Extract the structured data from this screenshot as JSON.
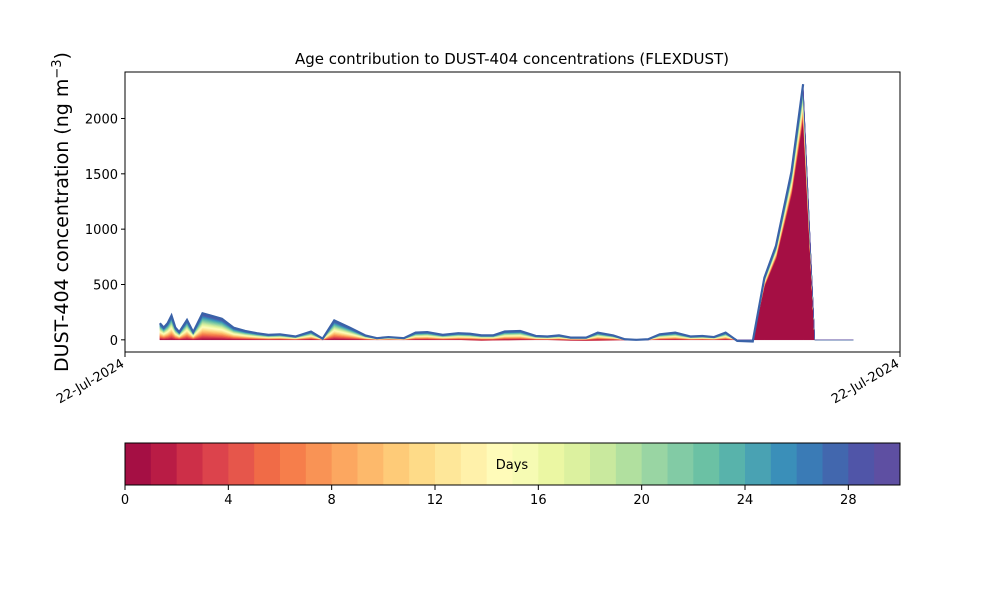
{
  "chart_data": {
    "type": "area",
    "title": "Age contribution to DUST-404 concentrations (FLEXDUST)",
    "ylabel": "DUST-404 concentration (ng m",
    "ylabel_sup": "−3",
    "ylabel_close": ")",
    "ylim": [
      -110,
      2420
    ],
    "yticks": [
      0,
      500,
      1000,
      1500,
      2000
    ],
    "xlim": [
      0,
      1
    ],
    "xticks": [
      {
        "pos": 0,
        "label": "22-Jul-2024"
      },
      {
        "pos": 1,
        "label": "22-Jul-2024"
      }
    ],
    "x": [
      0.045,
      0.05,
      0.055,
      0.06,
      0.065,
      0.07,
      0.08,
      0.088,
      0.1,
      0.11,
      0.125,
      0.14,
      0.155,
      0.17,
      0.185,
      0.2,
      0.22,
      0.24,
      0.255,
      0.27,
      0.29,
      0.31,
      0.325,
      0.34,
      0.36,
      0.375,
      0.39,
      0.41,
      0.43,
      0.445,
      0.46,
      0.475,
      0.49,
      0.51,
      0.53,
      0.545,
      0.56,
      0.575,
      0.595,
      0.61,
      0.63,
      0.645,
      0.66,
      0.675,
      0.69,
      0.71,
      0.73,
      0.745,
      0.76,
      0.775,
      0.79,
      0.81,
      0.825,
      0.84,
      0.86,
      0.875,
      0.89,
      0.9,
      0.91,
      0.92,
      0.93,
      0.94
    ],
    "total": [
      150,
      110,
      150,
      220,
      110,
      70,
      180,
      70,
      240,
      220,
      190,
      110,
      80,
      60,
      45,
      50,
      30,
      75,
      10,
      175,
      110,
      40,
      15,
      25,
      15,
      65,
      70,
      45,
      60,
      55,
      40,
      40,
      75,
      80,
      35,
      30,
      40,
      20,
      20,
      65,
      40,
      5,
      0,
      5,
      50,
      65,
      30,
      35,
      25,
      65,
      -10,
      -15,
      560,
      850,
      1520,
      2310,
      0,
      0,
      0,
      0,
      0,
      0
    ],
    "bottom_total": [
      0,
      0,
      0,
      0,
      0,
      0,
      0,
      0,
      0,
      0,
      0,
      0,
      0,
      0,
      0,
      0,
      0,
      0,
      0,
      0,
      0,
      0,
      0,
      0,
      0,
      0,
      0,
      0,
      0,
      -5,
      -8,
      -6,
      -5,
      -3,
      -2,
      -2,
      -5,
      -8,
      -10,
      -8,
      -6,
      -4,
      -2,
      0,
      0,
      0,
      0,
      0,
      0,
      0,
      0,
      0,
      0,
      0,
      0,
      0,
      0,
      0,
      0,
      0,
      0,
      0
    ],
    "colorbar": {
      "label": "Days",
      "min": 0,
      "max": 30,
      "ticks": [
        0,
        4,
        8,
        12,
        16,
        20,
        24,
        28
      ],
      "colors": [
        "#a50f44",
        "#b91c45",
        "#cd2f48",
        "#dc434c",
        "#e6564b",
        "#f06b47",
        "#f67e4b",
        "#f99355",
        "#fca760",
        "#fdb96b",
        "#fecb78",
        "#fedb88",
        "#fee799",
        "#fff1aa",
        "#fffbb9",
        "#f6fbb3",
        "#ebf7a3",
        "#dcf19f",
        "#c9e99e",
        "#b1e09f",
        "#99d5a3",
        "#82cba5",
        "#6bc1a4",
        "#58b3ab",
        "#49a2b3",
        "#3a8fb9",
        "#3a7bb6",
        "#4267ae",
        "#5055a8",
        "#5e4fa2"
      ]
    }
  }
}
